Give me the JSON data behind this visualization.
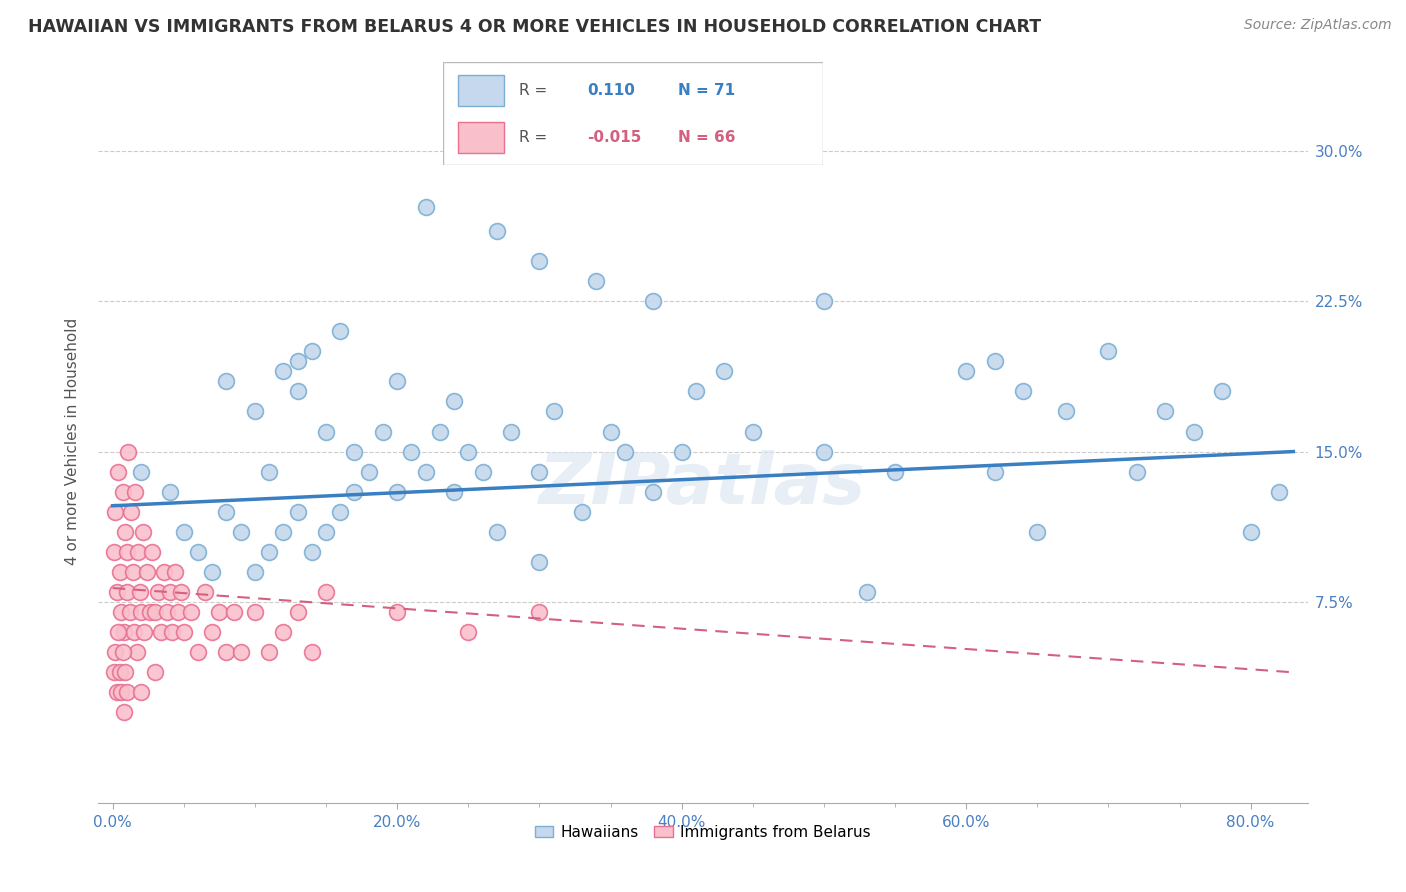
{
  "title": "HAWAIIAN VS IMMIGRANTS FROM BELARUS 4 OR MORE VEHICLES IN HOUSEHOLD CORRELATION CHART",
  "source": "Source: ZipAtlas.com",
  "ylabel": "4 or more Vehicles in Household",
  "blue_color": "#7bafd4",
  "blue_fill": "#c5d8ed",
  "pink_color": "#e87090",
  "pink_fill": "#f9c0cc",
  "trend_blue": "#3a7fc1",
  "trend_pink": "#d46080",
  "watermark": "ZIPatlas",
  "R_blue": 0.11,
  "N_blue": 71,
  "R_pink": -0.015,
  "N_pink": 66,
  "xlim": [
    -0.01,
    0.84
  ],
  "ylim": [
    -0.025,
    0.335
  ],
  "xtick_vals": [
    0.0,
    0.2,
    0.4,
    0.6,
    0.8
  ],
  "xtick_labels": [
    "0.0%",
    "20.0%",
    "40.0%",
    "60.0%",
    "80.0%"
  ],
  "ytick_vals": [
    0.075,
    0.15,
    0.225,
    0.3
  ],
  "ytick_labels": [
    "7.5%",
    "15.0%",
    "22.5%",
    "30.0%"
  ],
  "blue_trend_x": [
    0.0,
    0.83
  ],
  "blue_trend_y": [
    0.123,
    0.15
  ],
  "pink_trend_x": [
    0.0,
    0.83
  ],
  "pink_trend_y": [
    0.082,
    0.04
  ],
  "blue_x": [
    0.02,
    0.04,
    0.05,
    0.06,
    0.07,
    0.08,
    0.09,
    0.1,
    0.1,
    0.11,
    0.11,
    0.12,
    0.12,
    0.13,
    0.13,
    0.14,
    0.14,
    0.15,
    0.15,
    0.16,
    0.16,
    0.17,
    0.17,
    0.18,
    0.19,
    0.2,
    0.21,
    0.22,
    0.23,
    0.24,
    0.25,
    0.26,
    0.27,
    0.28,
    0.3,
    0.31,
    0.33,
    0.35,
    0.36,
    0.38,
    0.4,
    0.41,
    0.43,
    0.45,
    0.5,
    0.53,
    0.55,
    0.6,
    0.62,
    0.64,
    0.65,
    0.67,
    0.7,
    0.72,
    0.74,
    0.76,
    0.78,
    0.8,
    0.82,
    0.22,
    0.27,
    0.3,
    0.34,
    0.38,
    0.5,
    0.62,
    0.08,
    0.13,
    0.2,
    0.24,
    0.3
  ],
  "blue_y": [
    0.14,
    0.13,
    0.11,
    0.1,
    0.09,
    0.12,
    0.11,
    0.09,
    0.17,
    0.1,
    0.14,
    0.11,
    0.19,
    0.12,
    0.18,
    0.1,
    0.2,
    0.11,
    0.16,
    0.12,
    0.21,
    0.13,
    0.15,
    0.14,
    0.16,
    0.13,
    0.15,
    0.14,
    0.16,
    0.13,
    0.15,
    0.14,
    0.11,
    0.16,
    0.14,
    0.17,
    0.12,
    0.16,
    0.15,
    0.13,
    0.15,
    0.18,
    0.19,
    0.16,
    0.15,
    0.08,
    0.14,
    0.19,
    0.14,
    0.18,
    0.11,
    0.17,
    0.2,
    0.14,
    0.17,
    0.16,
    0.18,
    0.11,
    0.13,
    0.272,
    0.26,
    0.245,
    0.235,
    0.225,
    0.225,
    0.195,
    0.185,
    0.195,
    0.185,
    0.175,
    0.095
  ],
  "pink_x": [
    0.001,
    0.002,
    0.003,
    0.004,
    0.005,
    0.006,
    0.007,
    0.008,
    0.009,
    0.01,
    0.01,
    0.011,
    0.012,
    0.013,
    0.014,
    0.015,
    0.016,
    0.017,
    0.018,
    0.019,
    0.02,
    0.021,
    0.022,
    0.024,
    0.026,
    0.028,
    0.03,
    0.032,
    0.034,
    0.036,
    0.038,
    0.04,
    0.042,
    0.044,
    0.046,
    0.048,
    0.05,
    0.055,
    0.06,
    0.065,
    0.07,
    0.075,
    0.08,
    0.085,
    0.09,
    0.1,
    0.11,
    0.12,
    0.13,
    0.14,
    0.15,
    0.2,
    0.25,
    0.3,
    0.001,
    0.002,
    0.003,
    0.004,
    0.005,
    0.006,
    0.007,
    0.008,
    0.009,
    0.01,
    0.02,
    0.03
  ],
  "pink_y": [
    0.1,
    0.12,
    0.08,
    0.14,
    0.09,
    0.07,
    0.13,
    0.06,
    0.11,
    0.1,
    0.08,
    0.15,
    0.07,
    0.12,
    0.09,
    0.06,
    0.13,
    0.05,
    0.1,
    0.08,
    0.07,
    0.11,
    0.06,
    0.09,
    0.07,
    0.1,
    0.07,
    0.08,
    0.06,
    0.09,
    0.07,
    0.08,
    0.06,
    0.09,
    0.07,
    0.08,
    0.06,
    0.07,
    0.05,
    0.08,
    0.06,
    0.07,
    0.05,
    0.07,
    0.05,
    0.07,
    0.05,
    0.06,
    0.07,
    0.05,
    0.08,
    0.07,
    0.06,
    0.07,
    0.04,
    0.05,
    0.03,
    0.06,
    0.04,
    0.03,
    0.05,
    0.02,
    0.04,
    0.03,
    0.03,
    0.04
  ]
}
